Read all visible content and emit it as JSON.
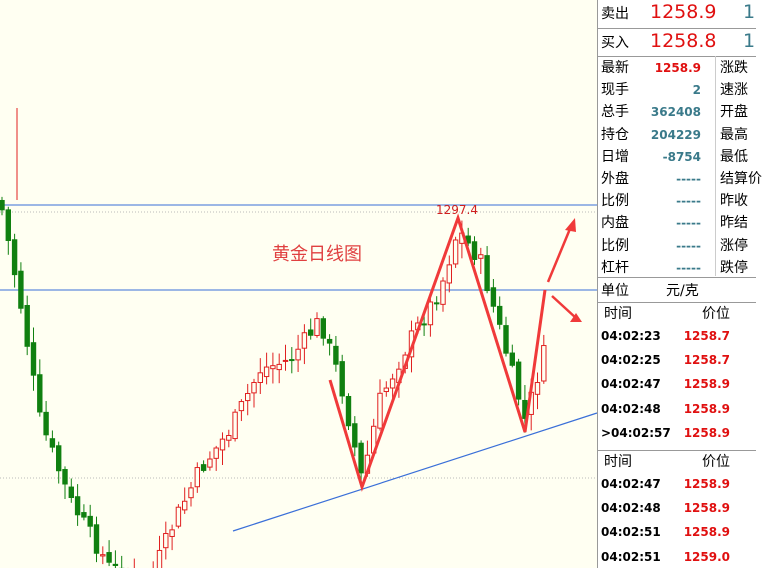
{
  "chart": {
    "title": "黄金日线图",
    "peak_label": "1297.4"
  },
  "quote": {
    "sell": {
      "label": "卖出",
      "price": "1258.9",
      "volume": "1"
    },
    "buy": {
      "label": "买入",
      "price": "1258.8",
      "volume": "1"
    }
  },
  "stats": [
    {
      "label": "最新",
      "value": "1258.9",
      "right": "涨跌"
    },
    {
      "label": "现手",
      "value": "2",
      "right": "速涨"
    },
    {
      "label": "总手",
      "value": "362408",
      "right": "开盘"
    },
    {
      "label": "持仓",
      "value": "204229",
      "right": "最高"
    },
    {
      "label": "日增",
      "value": "-8754",
      "right": "最低"
    },
    {
      "label": "外盘",
      "value": "-----",
      "right": "结算价"
    },
    {
      "label": "比例",
      "value": "-----",
      "right": "昨收"
    },
    {
      "label": "内盘",
      "value": "-----",
      "right": "昨结"
    },
    {
      "label": "比例",
      "value": "-----",
      "right": "涨停"
    },
    {
      "label": "杠杆",
      "value": "-----",
      "right": "跌停"
    }
  ],
  "unit": {
    "label": "单位",
    "value": "元/克"
  },
  "ticks1": {
    "header": [
      "时间",
      "价位"
    ],
    "rows": [
      [
        "04:02:23",
        "1258.7"
      ],
      [
        "04:02:25",
        "1258.7"
      ],
      [
        "04:02:47",
        "1258.9"
      ],
      [
        "04:02:48",
        "1258.9"
      ],
      [
        ">04:02:57",
        "1258.9"
      ]
    ]
  },
  "ticks2": {
    "header": [
      "时间",
      "价位"
    ],
    "rows": [
      [
        "04:02:47",
        "1258.9"
      ],
      [
        "04:02:48",
        "1258.9"
      ],
      [
        "04:02:51",
        "1258.9"
      ],
      [
        "04:02:51",
        "1259.0"
      ]
    ]
  }
}
